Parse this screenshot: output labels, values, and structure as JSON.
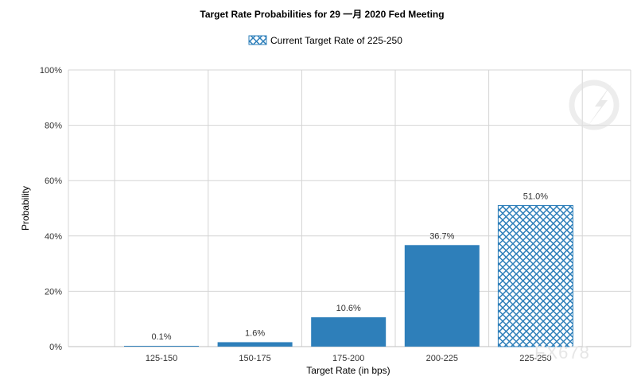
{
  "chart_data": {
    "type": "bar",
    "title": "Target Rate Probabilities for 29 一月 2020  Fed Meeting",
    "legend": {
      "entries": [
        {
          "label": "Current Target Rate of 225-250",
          "pattern": "crosshatch",
          "color": "#2e7fba"
        }
      ],
      "placement": "top-center"
    },
    "categories": [
      "125-150",
      "150-175",
      "175-200",
      "200-225",
      "225-250"
    ],
    "values": [
      0.1,
      1.6,
      10.6,
      36.7,
      51.0
    ],
    "data_labels": [
      "0.1%",
      "1.6%",
      "10.6%",
      "36.7%",
      "51.0%"
    ],
    "highlight_index": 4,
    "xlabel": "Target Rate (in bps)",
    "ylabel": "Probability",
    "ylim": [
      0,
      100
    ],
    "yticks": [
      0,
      20,
      40,
      60,
      80,
      100
    ],
    "ytick_labels": [
      "0%",
      "20%",
      "40%",
      "60%",
      "80%",
      "100%"
    ],
    "grid": true,
    "bar_color": "#2e7fba",
    "grid_color": "#d4d4d4"
  },
  "watermark": {
    "text": "FX678"
  }
}
